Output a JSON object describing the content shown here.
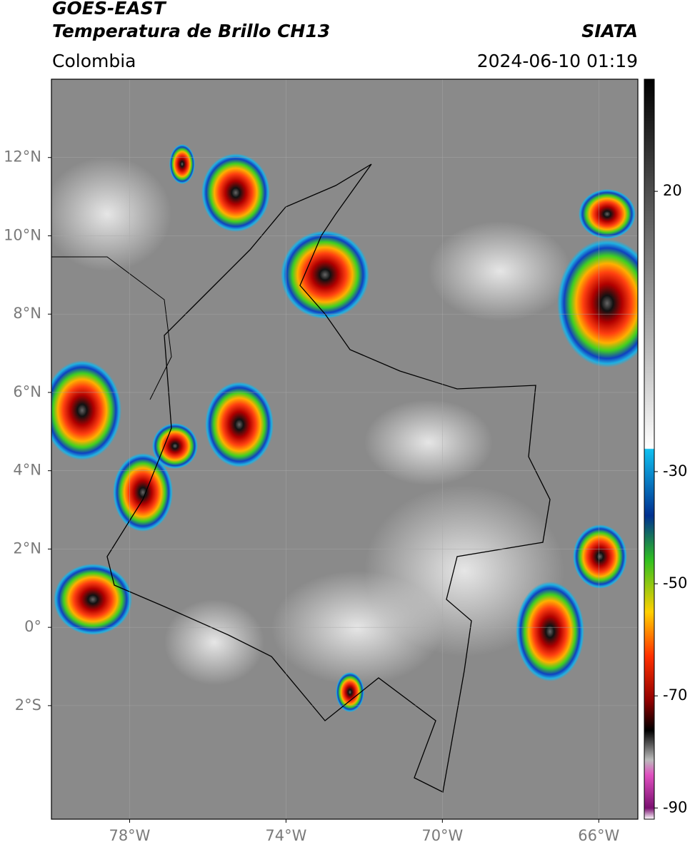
{
  "header": {
    "title": "GOES-EAST",
    "subtitle": "Temperatura de Brillo CH13",
    "source": "SIATA",
    "region": "Colombia",
    "datetime": "2024-06-10 01:19"
  },
  "map": {
    "xlim": [
      -80,
      -65
    ],
    "ylim": [
      -4.9,
      14
    ],
    "xticks": [
      {
        "value": -78,
        "label": "78°W"
      },
      {
        "value": -74,
        "label": "74°W"
      },
      {
        "value": -70,
        "label": "70°W"
      },
      {
        "value": -66,
        "label": "66°W"
      }
    ],
    "yticks": [
      {
        "value": 12,
        "label": "12°N"
      },
      {
        "value": 10,
        "label": "10°N"
      },
      {
        "value": 8,
        "label": "8°N"
      },
      {
        "value": 6,
        "label": "6°N"
      },
      {
        "value": 4,
        "label": "4°N"
      },
      {
        "value": 2,
        "label": "2°N"
      },
      {
        "value": 0,
        "label": "0°"
      },
      {
        "value": -2,
        "label": "2°S"
      }
    ]
  },
  "colorbar": {
    "lim": [
      -92,
      40
    ],
    "ticks": [
      20,
      -30,
      -50,
      -70,
      -90
    ]
  }
}
